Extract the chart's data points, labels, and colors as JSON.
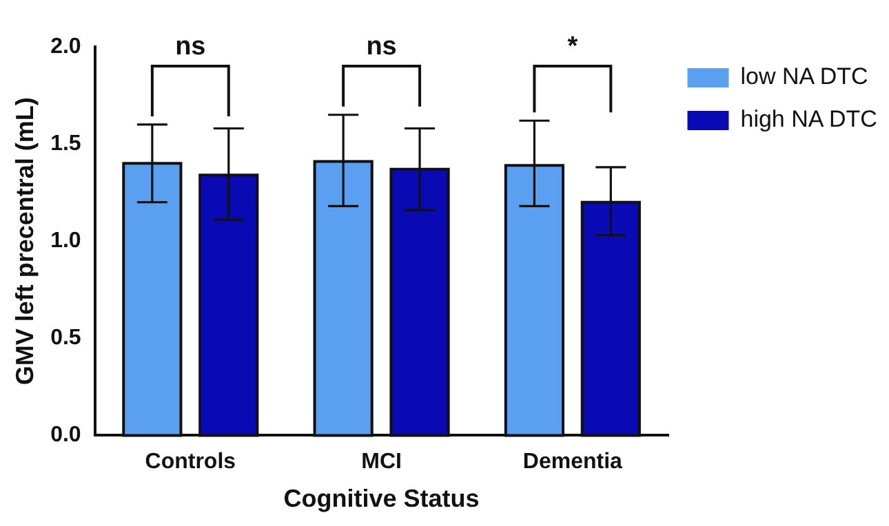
{
  "chart_data": {
    "type": "bar",
    "xlabel": "Cognitive Status",
    "ylabel": "GMV left precentral (mL)",
    "categories": [
      "Controls",
      "MCI",
      "Dementia"
    ],
    "series": [
      {
        "name": "low NA DTC",
        "color": "#5b9ff0",
        "values": [
          1.4,
          1.41,
          1.39
        ],
        "errors": [
          [
            1.2,
            1.6
          ],
          [
            1.18,
            1.65
          ],
          [
            1.18,
            1.62
          ]
        ]
      },
      {
        "name": "high NA DTC",
        "color": "#0a0ab4",
        "values": [
          1.34,
          1.37,
          1.2
        ],
        "errors": [
          [
            1.11,
            1.58
          ],
          [
            1.16,
            1.58
          ],
          [
            1.03,
            1.38
          ]
        ]
      }
    ],
    "ylim": [
      0,
      2.0
    ],
    "yticks": [
      {
        "value": 0,
        "label": "0.0"
      },
      {
        "value": 0.5,
        "label": "0.5"
      },
      {
        "value": 1.0,
        "label": "1.0"
      },
      {
        "value": 1.5,
        "label": "1.5"
      },
      {
        "value": 2.0,
        "label": "2.0"
      }
    ],
    "annotations": [
      "ns",
      "ns",
      "*"
    ],
    "grid": false,
    "legend": "top right"
  }
}
